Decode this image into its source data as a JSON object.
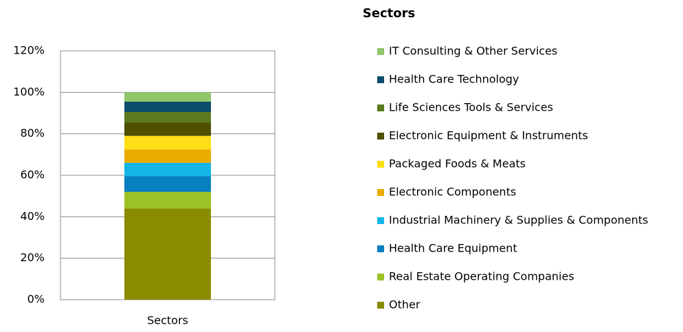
{
  "chart_data": {
    "type": "stacked_bar",
    "title": "Sectors",
    "categories": [
      "Sectors"
    ],
    "series": [
      {
        "name": "Other",
        "color": "#8a8c00",
        "values": [
          44
        ]
      },
      {
        "name": "Real Estate Operating Companies",
        "color": "#9cc325",
        "values": [
          8
        ]
      },
      {
        "name": "Health Care Equipment",
        "color": "#087fc0",
        "values": [
          7.5
        ]
      },
      {
        "name": "Industrial Machinery & Supplies & Components",
        "color": "#14b6ea",
        "values": [
          6.5
        ]
      },
      {
        "name": "Electronic Components",
        "color": "#e8ab00",
        "values": [
          6.5
        ]
      },
      {
        "name": "Packaged Foods & Meats",
        "color": "#ffde17",
        "values": [
          6.5
        ]
      },
      {
        "name": "Electronic Equipment & Instruments",
        "color": "#4f4f00",
        "values": [
          6.5
        ]
      },
      {
        "name": "Life Sciences Tools & Services",
        "color": "#5b7b1d",
        "values": [
          5
        ]
      },
      {
        "name": "Health Care Technology",
        "color": "#0b4d6b",
        "values": [
          5
        ]
      },
      {
        "name": "IT Consulting & Other Services",
        "color": "#8ec66a",
        "values": [
          4.5
        ]
      }
    ],
    "ylim": [
      0,
      120
    ],
    "yticks": [
      {
        "value": 0,
        "label": "0%"
      },
      {
        "value": 20,
        "label": "20%"
      },
      {
        "value": 40,
        "label": "40%"
      },
      {
        "value": 60,
        "label": "60%"
      },
      {
        "value": 80,
        "label": "80%"
      },
      {
        "value": 100,
        "label": "100%"
      },
      {
        "value": 120,
        "label": "120%"
      }
    ],
    "grid": true,
    "legend": "right"
  }
}
